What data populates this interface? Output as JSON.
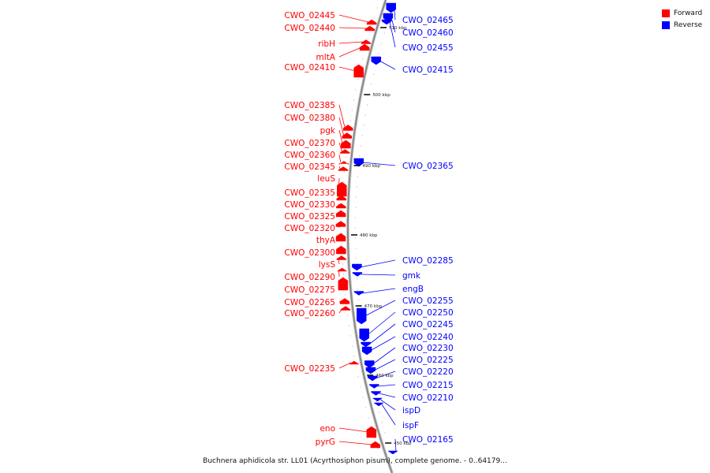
{
  "caption": "Buchnera aphidicola str. LL01 (Acyrthosiphon pisum), complete genome. - 0..64179...",
  "legend": [
    {
      "label": "Forward",
      "color": "#ff0000"
    },
    {
      "label": "Reverse",
      "color": "#0000ff"
    }
  ],
  "colors": {
    "forward": "#ff0000",
    "reverse": "#0000ff",
    "backbone": "#888888"
  },
  "ticks": [
    "510 kbp",
    "500 kbp",
    "490 kbp",
    "480 kbp",
    "470 kbp",
    "460 kbp",
    "450 kbp"
  ],
  "forward_genes": [
    "CWO_02445",
    "CWO_02440",
    "ribH",
    "mltA",
    "CWO_02410",
    "CWO_02385",
    "CWO_02380",
    "pgk",
    "CWO_02370",
    "CWO_02360",
    "CWO_02345",
    "leuS",
    "CWO_02335",
    "CWO_02330",
    "CWO_02325",
    "CWO_02320",
    "thyA",
    "CWO_02300",
    "lysS",
    "CWO_02290",
    "CWO_02275",
    "CWO_02265",
    "CWO_02260",
    "CWO_02235",
    "eno",
    "pyrG"
  ],
  "reverse_genes": [
    "CWO_02465",
    "CWO_02460",
    "CWO_02455",
    "CWO_02415",
    "CWO_02365",
    "CWO_02285",
    "gmk",
    "engB",
    "CWO_02255",
    "CWO_02250",
    "CWO_02245",
    "CWO_02240",
    "CWO_02230",
    "CWO_02225",
    "CWO_02220",
    "CWO_02215",
    "CWO_02210",
    "ispD",
    "ispF",
    "CWO_02165"
  ]
}
